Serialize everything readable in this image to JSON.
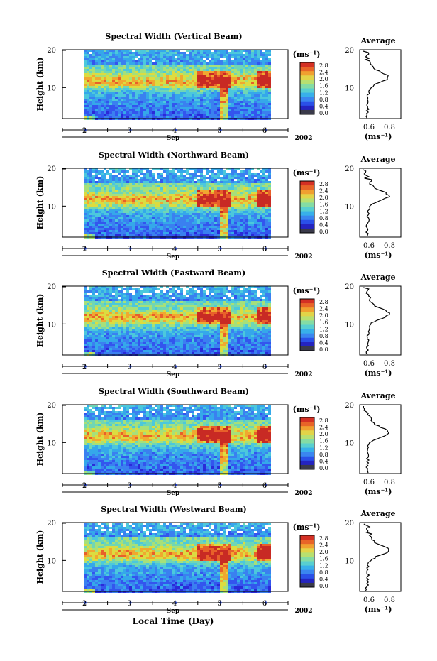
{
  "figure": {
    "xlabel": "Local Time (Day)"
  },
  "chart_data": [
    {
      "type": "heatmap",
      "title": "Spectral Width (Vertical Beam)",
      "ylabel": "Height (km)",
      "xlabel": "Sep",
      "year": "2002",
      "x_ticks": [
        "2",
        "3",
        "4",
        "5",
        "6"
      ],
      "ylim": [
        1,
        20
      ],
      "y_ticks": [
        "10",
        "20"
      ],
      "colorbar": {
        "unit": "(ms⁻¹)",
        "ticks": [
          "0.0",
          "0.4",
          "0.8",
          "1.2",
          "1.6",
          "2.0",
          "2.4",
          "2.8"
        ]
      },
      "profile": {
        "title": "Average",
        "xlabel": "(ms⁻¹)",
        "x_ticks": [
          "0.6",
          "0.8"
        ],
        "y_ticks": [
          "10",
          "20"
        ]
      }
    },
    {
      "type": "heatmap",
      "title": "Spectral Width (Northward Beam)",
      "ylabel": "Height (km)",
      "xlabel": "Sep",
      "year": "2002",
      "x_ticks": [
        "2",
        "3",
        "4",
        "5",
        "6"
      ],
      "ylim": [
        1,
        20
      ],
      "y_ticks": [
        "10",
        "20"
      ],
      "colorbar": {
        "unit": "(ms⁻¹)",
        "ticks": [
          "0.0",
          "0.4",
          "0.8",
          "1.2",
          "1.6",
          "2.0",
          "2.4",
          "2.8"
        ]
      },
      "profile": {
        "title": "Average",
        "xlabel": "(ms⁻¹)",
        "x_ticks": [
          "0.6",
          "0.8"
        ],
        "y_ticks": [
          "10",
          "20"
        ]
      }
    },
    {
      "type": "heatmap",
      "title": "Spectral Width (Eastward Beam)",
      "ylabel": "Height (km)",
      "xlabel": "Sep",
      "year": "2002",
      "x_ticks": [
        "2",
        "3",
        "4",
        "5",
        "6"
      ],
      "ylim": [
        1,
        20
      ],
      "y_ticks": [
        "10",
        "20"
      ],
      "colorbar": {
        "unit": "(ms⁻¹)",
        "ticks": [
          "0.0",
          "0.4",
          "0.8",
          "1.2",
          "1.6",
          "2.0",
          "2.4",
          "2.8"
        ]
      },
      "profile": {
        "title": "Average",
        "xlabel": "(ms⁻¹)",
        "x_ticks": [
          "0.6",
          "0.8"
        ],
        "y_ticks": [
          "10",
          "20"
        ]
      }
    },
    {
      "type": "heatmap",
      "title": "Spectral Width (Southward Beam)",
      "ylabel": "Height (km)",
      "xlabel": "Sep",
      "year": "2002",
      "x_ticks": [
        "2",
        "3",
        "4",
        "5",
        "6"
      ],
      "ylim": [
        1,
        20
      ],
      "y_ticks": [
        "10",
        "20"
      ],
      "colorbar": {
        "unit": "(ms⁻¹)",
        "ticks": [
          "0.0",
          "0.4",
          "0.8",
          "1.2",
          "1.6",
          "2.0",
          "2.4",
          "2.8"
        ]
      },
      "profile": {
        "title": "Average",
        "xlabel": "(ms⁻¹)",
        "x_ticks": [
          "0.6",
          "0.8"
        ],
        "y_ticks": [
          "10",
          "20"
        ]
      }
    },
    {
      "type": "heatmap",
      "title": "Spectral Width (Westward Beam)",
      "ylabel": "Height (km)",
      "xlabel": "Sep",
      "year": "2002",
      "x_ticks": [
        "2",
        "3",
        "4",
        "5",
        "6"
      ],
      "ylim": [
        1,
        20
      ],
      "y_ticks": [
        "10",
        "20"
      ],
      "colorbar": {
        "unit": "(ms⁻¹)",
        "ticks": [
          "0.0",
          "0.4",
          "0.8",
          "1.2",
          "1.6",
          "2.0",
          "2.4",
          "2.8"
        ]
      },
      "profile": {
        "title": "Average",
        "xlabel": "(ms⁻¹)",
        "x_ticks": [
          "0.6",
          "0.8"
        ],
        "y_ticks": [
          "10",
          "20"
        ]
      }
    }
  ]
}
